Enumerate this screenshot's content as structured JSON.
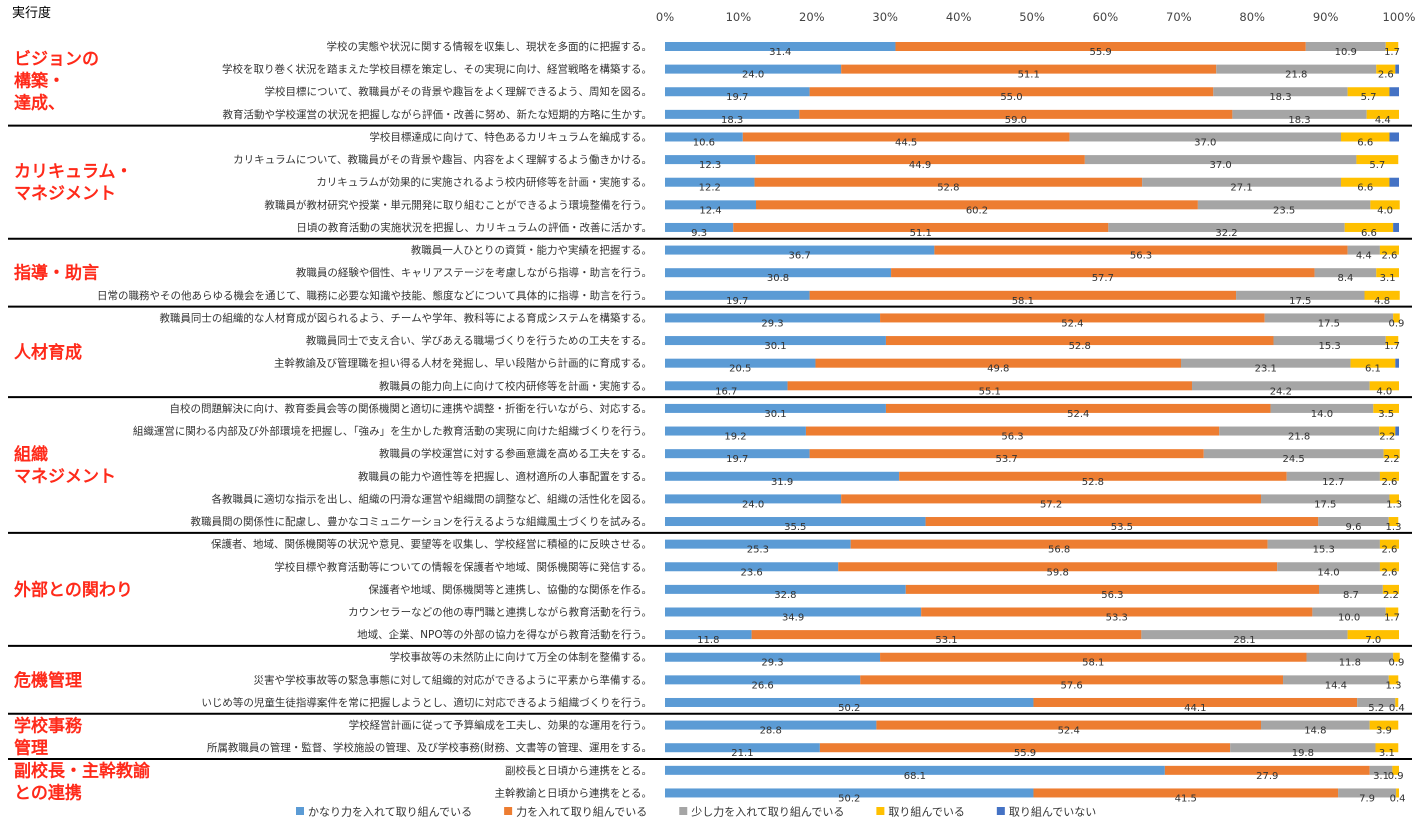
{
  "chart_data": {
    "type": "bar",
    "orientation": "horizontal",
    "stacked": true,
    "title": "実行度",
    "xlim": [
      0,
      100
    ],
    "x_ticks": [
      "0%",
      "10%",
      "20%",
      "30%",
      "40%",
      "50%",
      "60%",
      "70%",
      "80%",
      "90%",
      "100%"
    ],
    "series": [
      {
        "name": "かなり力を入れて取り組んでいる",
        "color": "#5b9bd5"
      },
      {
        "name": "力を入れて取り組んでいる",
        "color": "#ed7d31"
      },
      {
        "name": "少し力を入れて取り組んでいる",
        "color": "#a5a5a5"
      },
      {
        "name": "取り組んでいる",
        "color": "#ffc000"
      },
      {
        "name": "取り組んでいない",
        "color": "#4472c4"
      }
    ],
    "groups": [
      {
        "label": "ビジョンの\n構築・\n達成、",
        "items": [
          {
            "label": "学校の実態や状況に関する情報を収集し、現状を多面的に把握する。",
            "values": [
              31.4,
              55.9,
              10.9,
              1.7,
              0.0
            ]
          },
          {
            "label": "学校を取り巻く状況を踏まえた学校目標を策定し、その実現に向け、経営戦略を構築する。",
            "values": [
              24.0,
              51.1,
              21.8,
              2.6,
              0.5
            ]
          },
          {
            "label": "学校目標について、教職員がその背景や趣旨をよく理解できるよう、周知を図る。",
            "values": [
              19.7,
              55.0,
              18.3,
              5.7,
              1.3
            ]
          },
          {
            "label": "教育活動や学校運営の状況を把握しながら評価・改善に努め、新たな短期的方略に生かす。",
            "values": [
              18.3,
              59.0,
              18.3,
              4.4,
              0.0
            ]
          }
        ]
      },
      {
        "label": "カリキュラム・\nマネジメント",
        "items": [
          {
            "label": "学校目標達成に向けて、特色あるカリキュラムを編成する。",
            "values": [
              10.6,
              44.5,
              37.0,
              6.6,
              1.3
            ]
          },
          {
            "label": "カリキュラムについて、教職員がその背景や趣旨、内容をよく理解するよう働きかける。",
            "values": [
              12.3,
              44.9,
              37.0,
              5.7,
              0.0
            ]
          },
          {
            "label": "カリキュラムが効果的に実施されるよう校内研修等を計画・実施する。",
            "values": [
              12.2,
              52.8,
              27.1,
              6.6,
              1.3
            ]
          },
          {
            "label": "教職員が教材研究や授業・単元開発に取り組むことができるよう環境整備を行う。",
            "values": [
              12.4,
              60.2,
              23.5,
              4.0,
              0.0
            ]
          },
          {
            "label": "日頃の教育活動の実施状況を把握し、カリキュラムの評価・改善に活かす。",
            "values": [
              9.3,
              51.1,
              32.2,
              6.6,
              0.8
            ]
          }
        ]
      },
      {
        "label": "指導・助言",
        "items": [
          {
            "label": "教職員一人ひとりの資質・能力や実績を把握する。",
            "values": [
              36.7,
              56.3,
              4.4,
              2.6,
              0.0
            ]
          },
          {
            "label": "教職員の経験や個性、キャリアステージを考慮しながら指導・助言を行う。",
            "values": [
              30.8,
              57.7,
              8.4,
              3.1,
              0.0
            ]
          },
          {
            "label": "日常の職務やその他あらゆる機会を通じて、職務に必要な知識や技能、態度などについて具体的に指導・助言を行う。",
            "values": [
              19.7,
              58.1,
              17.5,
              4.8,
              0.0
            ]
          }
        ]
      },
      {
        "label": "人材育成",
        "items": [
          {
            "label": "教職員同士の組織的な人材育成が図られるよう、チームや学年、教科等による育成システムを構築する。",
            "values": [
              29.3,
              52.4,
              17.5,
              0.9,
              0.0
            ]
          },
          {
            "label": "教職員同士で支え合い、学びあえる職場づくりを行うための工夫をする。",
            "values": [
              30.1,
              52.8,
              15.3,
              1.7,
              0.0
            ]
          },
          {
            "label": "主幹教諭及び管理職を担い得る人材を発掘し、早い段階から計画的に育成する。",
            "values": [
              20.5,
              49.8,
              23.1,
              6.1,
              0.5
            ]
          },
          {
            "label": "教職員の能力向上に向けて校内研修等を計画・実施する。",
            "values": [
              16.7,
              55.1,
              24.2,
              4.0,
              0.0
            ]
          }
        ]
      },
      {
        "label": "組織\nマネジメント",
        "items": [
          {
            "label": "自校の問題解決に向け、教育委員会等の関係機関と適切に連携や調整・折衝を行いながら、対応する。",
            "values": [
              30.1,
              52.4,
              14.0,
              3.5,
              0.0
            ]
          },
          {
            "label": "組織運営に関わる内部及び外部環境を把握し、「強み」を生かした教育活動の実現に向けた組織づくりを行う。",
            "values": [
              19.2,
              56.3,
              21.8,
              2.2,
              0.5
            ]
          },
          {
            "label": "教職員の学校運営に対する参画意識を高める工夫をする。",
            "values": [
              19.7,
              53.7,
              24.5,
              2.2,
              0.0
            ]
          },
          {
            "label": "教職員の能力や適性等を把握し、適材適所の人事配置をする。",
            "values": [
              31.9,
              52.8,
              12.7,
              2.6,
              0.0
            ]
          },
          {
            "label": "各教職員に適切な指示を出し、組織の円滑な運営や組織間の調整など、組織の活性化を図る。",
            "values": [
              24.0,
              57.2,
              17.5,
              1.3,
              0.0
            ]
          },
          {
            "label": "教職員間の関係性に配慮し、豊かなコミュニケーションを行えるような組織風土づくりを試みる。",
            "values": [
              35.5,
              53.5,
              9.6,
              1.3,
              0.0
            ]
          }
        ]
      },
      {
        "label": "外部との関わり",
        "items": [
          {
            "label": "保護者、地域、関係機関等の状況や意見、要望等を収集し、学校経営に積極的に反映させる。",
            "values": [
              25.3,
              56.8,
              15.3,
              2.6,
              0.0
            ]
          },
          {
            "label": "学校目標や教育活動等についての情報を保護者や地域、関係機関等に発信する。",
            "values": [
              23.6,
              59.8,
              14.0,
              2.6,
              0.0
            ]
          },
          {
            "label": "保護者や地域、関係機関等と連携し、協働的な関係を作る。",
            "values": [
              32.8,
              56.3,
              8.7,
              2.2,
              0.0
            ]
          },
          {
            "label": "カウンセラーなどの他の専門職と連携しながら教育活動を行う。",
            "values": [
              34.9,
              53.3,
              10.0,
              1.7,
              0.0
            ]
          },
          {
            "label": "地域、企業、NPO等の外部の協力を得ながら教育活動を行う。",
            "values": [
              11.8,
              53.1,
              28.1,
              7.0,
              0.0
            ]
          }
        ]
      },
      {
        "label": "危機管理",
        "items": [
          {
            "label": "学校事故等の未然防止に向けて万全の体制を整備する。",
            "values": [
              29.3,
              58.1,
              11.8,
              0.9,
              0.0
            ]
          },
          {
            "label": "災害や学校事故等の緊急事態に対して組織的対応ができるように平素から準備する。",
            "values": [
              26.6,
              57.6,
              14.4,
              1.3,
              0.0
            ]
          },
          {
            "label": "いじめ等の児童生徒指導案件を常に把握しようとし、適切に対応できるよう組織づくりを行う。",
            "values": [
              50.2,
              44.1,
              5.2,
              0.4,
              0.0
            ]
          }
        ]
      },
      {
        "label": "学校事務\n管理",
        "items": [
          {
            "label": "学校経営計画に従って予算編成を工夫し、効果的な運用を行う。",
            "values": [
              28.8,
              52.4,
              14.8,
              3.9,
              0.0
            ]
          },
          {
            "label": "所属教職員の管理・監督、学校施設の管理、及び学校事務(財務、文書等の管理、運用をする。",
            "values": [
              21.1,
              55.9,
              19.8,
              3.1,
              0.0
            ]
          }
        ]
      },
      {
        "label": "副校長・主幹教諭\nとの連携",
        "items": [
          {
            "label": "副校長と日頃から連携をとる。",
            "values": [
              68.1,
              27.9,
              3.1,
              0.9,
              0.0
            ]
          },
          {
            "label": "主幹教諭と日頃から連携をとる。",
            "values": [
              50.2,
              41.5,
              7.9,
              0.4,
              0.0
            ]
          }
        ]
      }
    ],
    "grid": false,
    "legend": "bottom"
  }
}
